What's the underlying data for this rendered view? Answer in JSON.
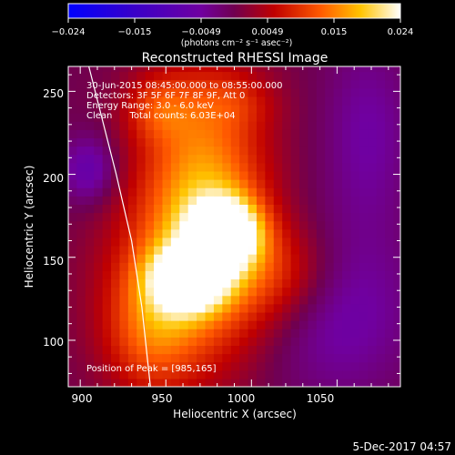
{
  "chart_data": {
    "type": "heatmap",
    "title": "Reconstructed RHESSI Image",
    "xlabel": "Heliocentric X (arcsec)",
    "ylabel": "Heliocentric Y (arcsec)",
    "xlim": [
      893,
      1087
    ],
    "ylim": [
      72,
      265
    ],
    "x_ticks": [
      900,
      950,
      1000,
      1050
    ],
    "y_ticks": [
      100,
      150,
      200,
      250
    ],
    "colorbar": {
      "range": [
        -0.024,
        0.024
      ],
      "ticks": [
        "−0.024",
        "−0.015",
        "−0.0049",
        "0.0049",
        "0.015",
        "0.024"
      ],
      "unit_label": "(photons cm⁻² s⁻¹ asec⁻²)",
      "colors": [
        "#0000ff",
        "#3a00c8",
        "#7000a0",
        "#700050",
        "#c00000",
        "#ff5a00",
        "#ffc400",
        "#ffffff"
      ]
    },
    "annotations": [
      "30-Jun-2015 08:45:00.000 to 08:55:00.000",
      "Detectors: 3F 5F 6F 7F 8F 9F, Att 0",
      "Energy Range: 3.0 - 6.0 keV",
      "Clean      Total counts: 6.03E+04"
    ],
    "peak_label": "Position of Peak = [985,165]",
    "peak": {
      "x": 985,
      "y": 165
    },
    "sources": [
      {
        "x": 985,
        "y": 165,
        "sx": 14,
        "sy": 14,
        "amp": 0.024
      },
      {
        "x": 963,
        "y": 137,
        "sx": 15,
        "sy": 13,
        "amp": 0.022
      },
      {
        "x": 972,
        "y": 195,
        "sx": 26,
        "sy": 48,
        "amp": 0.015
      },
      {
        "x": 960,
        "y": 130,
        "sx": 32,
        "sy": 40,
        "amp": 0.011
      },
      {
        "x": 940,
        "y": 104,
        "sx": 18,
        "sy": 26,
        "amp": 0.007
      },
      {
        "x": 1018,
        "y": 140,
        "sx": 24,
        "sy": 22,
        "amp": 0.008
      },
      {
        "x": 945,
        "y": 240,
        "sx": 14,
        "sy": 14,
        "amp": 0.007
      },
      {
        "x": 990,
        "y": 244,
        "sx": 18,
        "sy": 12,
        "amp": 0.004
      }
    ],
    "negative_regions": [
      {
        "x": 905,
        "y": 203,
        "sx": 11,
        "sy": 14,
        "amp": -0.0075
      },
      {
        "x": 1050,
        "y": 120,
        "sx": 30,
        "sy": 36,
        "amp": -0.0065
      },
      {
        "x": 1068,
        "y": 225,
        "sx": 18,
        "sy": 40,
        "amp": -0.005
      }
    ],
    "limb_curve": [
      [
        905,
        265
      ],
      [
        921,
        200
      ],
      [
        930,
        160
      ],
      [
        936,
        120
      ],
      [
        941,
        72
      ]
    ]
  },
  "footer": {
    "date": "5-Dec-2017 04:57"
  }
}
